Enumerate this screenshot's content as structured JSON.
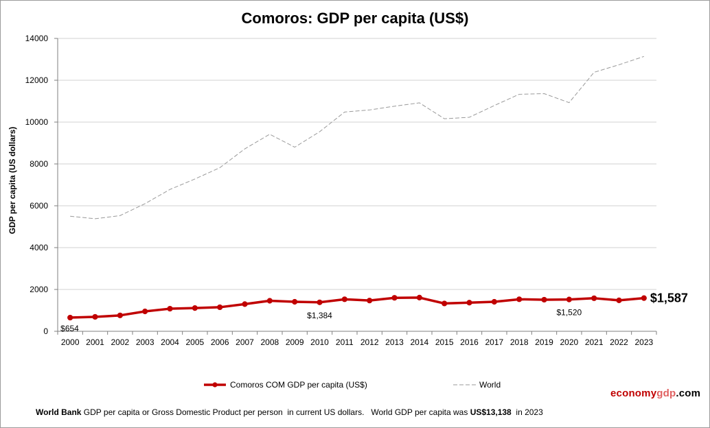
{
  "chart_data": {
    "type": "line",
    "title": "Comoros: GDP per capita (US$)",
    "ylabel": "GDP per capita (US dollars)",
    "xlabel": "",
    "ylim": [
      0,
      14000
    ],
    "yticks": [
      0,
      2000,
      4000,
      6000,
      8000,
      10000,
      12000,
      14000
    ],
    "grid": true,
    "legend_position": "bottom",
    "categories": [
      "2000",
      "2001",
      "2002",
      "2003",
      "2004",
      "2005",
      "2006",
      "2007",
      "2008",
      "2009",
      "2010",
      "2011",
      "2012",
      "2013",
      "2014",
      "2015",
      "2016",
      "2017",
      "2018",
      "2019",
      "2020",
      "2021",
      "2022",
      "2023"
    ],
    "series": [
      {
        "name": "Comoros COM GDP per capita (US$)",
        "color": "#c00000",
        "style": "solid-markers",
        "values": [
          654,
          690,
          760,
          950,
          1080,
          1110,
          1150,
          1300,
          1460,
          1410,
          1384,
          1530,
          1470,
          1600,
          1610,
          1330,
          1370,
          1410,
          1530,
          1510,
          1520,
          1580,
          1480,
          1587
        ]
      },
      {
        "name": "World",
        "color": "#999999",
        "style": "dashed",
        "values": [
          5500,
          5380,
          5530,
          6100,
          6780,
          7280,
          7820,
          8720,
          9420,
          8800,
          9540,
          10480,
          10580,
          10760,
          10920,
          10160,
          10230,
          10790,
          11330,
          11360,
          10930,
          12380,
          12740,
          13138
        ]
      }
    ],
    "annotations": [
      {
        "index": 0,
        "series": 0,
        "text": "$654"
      },
      {
        "index": 10,
        "series": 0,
        "text": "$1,384"
      },
      {
        "index": 20,
        "series": 0,
        "text": "$1,520"
      },
      {
        "index": 23,
        "series": 0,
        "text": "$1,587"
      }
    ]
  },
  "brand": {
    "part1": "economy",
    "part2": "gdp",
    "part3": ".com"
  },
  "footnote": {
    "source_bold": "World Bank",
    "text1": " GDP per capita or Gross Domestic Product per person  in current US dollars.   World GDP per capita was ",
    "value_bold": "US$13,138",
    "text2": "  in 2023"
  }
}
